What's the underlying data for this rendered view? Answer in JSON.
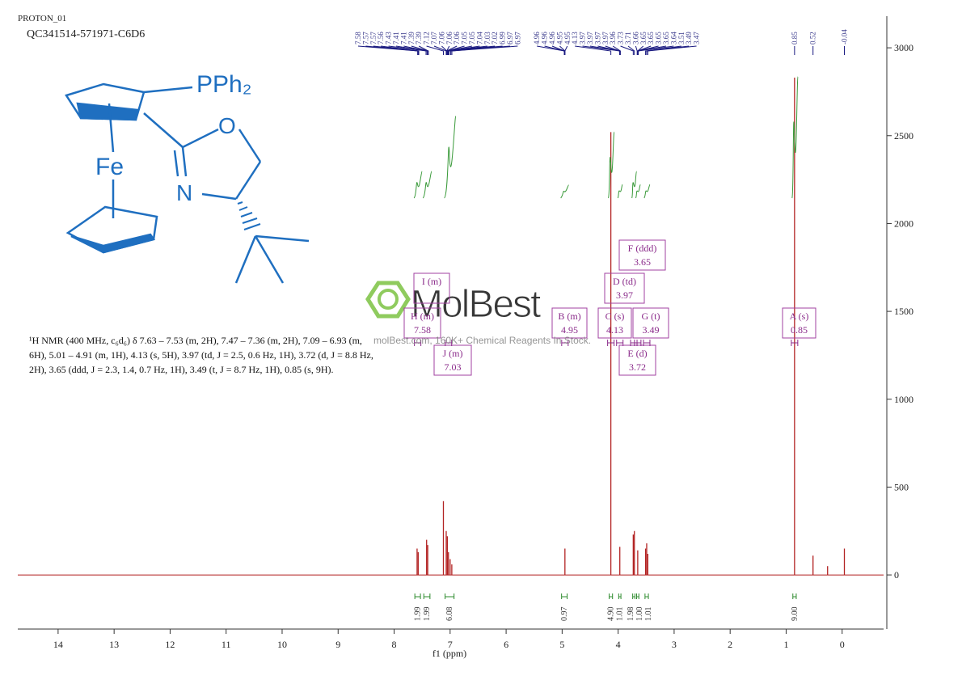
{
  "header": {
    "experiment": "PROTON_01",
    "sample": "QC341514-571971-C6D6"
  },
  "structure_labels": [
    "PPh₂",
    "Fe",
    "N",
    "O"
  ],
  "description": "¹H NMR (400 MHz, c₆d₆) δ 7.63 – 7.53 (m, 2H), 7.47 – 7.36 (m, 2H), 7.09 – 6.93 (m, 6H), 5.01 – 4.91 (m, 1H), 4.13 (s, 5H), 3.97 (td, J = 2.5, 0.6 Hz, 1H), 3.72 (d, J = 8.8 Hz, 2H), 3.65 (ddd, J = 2.3, 1.4, 0.7 Hz, 1H), 3.49 (t, J = 8.7 Hz, 1H), 0.85 (s, 9H).",
  "watermark": {
    "logo": "MolBest",
    "text": "molBest.com, 160K+ Chemical Reagents In Stock."
  },
  "chart_data": {
    "type": "nmr",
    "xlabel": "f1 (ppm)",
    "xlim": [
      14.72,
      -0.74
    ],
    "xticks": [
      14,
      13,
      12,
      11,
      10,
      9,
      8,
      7,
      6,
      5,
      4,
      3,
      2,
      1,
      0
    ],
    "ylim": [
      -308,
      3180
    ],
    "yticks": [
      0,
      500,
      1000,
      1500,
      2000,
      2500,
      3000
    ],
    "color": "#b22222",
    "x": [
      7.59,
      7.57,
      7.42,
      7.4,
      7.12,
      7.07,
      7.05,
      7.03,
      7.0,
      6.97,
      4.95,
      4.13,
      3.97,
      3.73,
      3.71,
      3.65,
      3.51,
      3.49,
      3.47,
      0.85,
      0.52,
      0.26,
      -0.04
    ],
    "values": [
      150,
      130,
      200,
      170,
      420,
      250,
      220,
      130,
      90,
      60,
      150,
      2520,
      160,
      230,
      250,
      140,
      150,
      180,
      120,
      2830,
      110,
      50,
      150
    ],
    "peak_labels": [
      7.58,
      7.57,
      7.57,
      7.56,
      7.43,
      7.41,
      7.41,
      7.39,
      7.39,
      7.12,
      7.07,
      7.06,
      7.06,
      7.06,
      7.05,
      7.05,
      7.04,
      7.03,
      7.02,
      6.99,
      6.97,
      6.97,
      4.96,
      4.96,
      4.96,
      4.95,
      4.95,
      4.13,
      3.97,
      3.97,
      3.97,
      3.97,
      3.96,
      3.73,
      3.71,
      3.66,
      3.65,
      3.65,
      3.65,
      3.65,
      3.64,
      3.51,
      3.49,
      3.47,
      0.85,
      0.52,
      -0.04
    ],
    "integrals": [
      {
        "range": [
          7.63,
          7.53
        ],
        "value": 1.99
      },
      {
        "range": [
          7.47,
          7.36
        ],
        "value": 1.99
      },
      {
        "range": [
          7.09,
          6.93
        ],
        "value": 6.08
      },
      {
        "range": [
          5.01,
          4.91
        ],
        "value": 0.97
      },
      {
        "range": [
          4.16,
          4.1
        ],
        "value": {
          "value": 4.9,
          "label": "4.90"
        }
      },
      {
        "range": [
          3.99,
          3.95
        ],
        "value": 1.01
      },
      {
        "range": [
          3.74,
          3.7
        ],
        "value": 1.98
      },
      {
        "range": [
          3.67,
          3.63
        ],
        "value": {
          "value": 1,
          "label": "1.00"
        }
      },
      {
        "range": [
          3.52,
          3.46
        ],
        "value": 1.01
      },
      {
        "range": [
          0.88,
          0.82
        ],
        "value": {
          "value": 9,
          "label": "9.00"
        }
      }
    ],
    "multiplets": [
      {
        "label": "A (s)",
        "shift": 0.85
      },
      {
        "label": "B (m)",
        "shift": 4.95
      },
      {
        "label": "C (s)",
        "shift": 4.13
      },
      {
        "label": "D (td)",
        "shift": 3.97
      },
      {
        "label": "E (d)",
        "shift": 3.72
      },
      {
        "label": "F (ddd)",
        "shift": 3.65
      },
      {
        "label": "G (t)",
        "shift": 3.49
      },
      {
        "label": "H (m)",
        "shift": 7.58
      },
      {
        "label": "I (m)"
      },
      {
        "label": "J (m)",
        "shift": 7.03
      }
    ]
  }
}
